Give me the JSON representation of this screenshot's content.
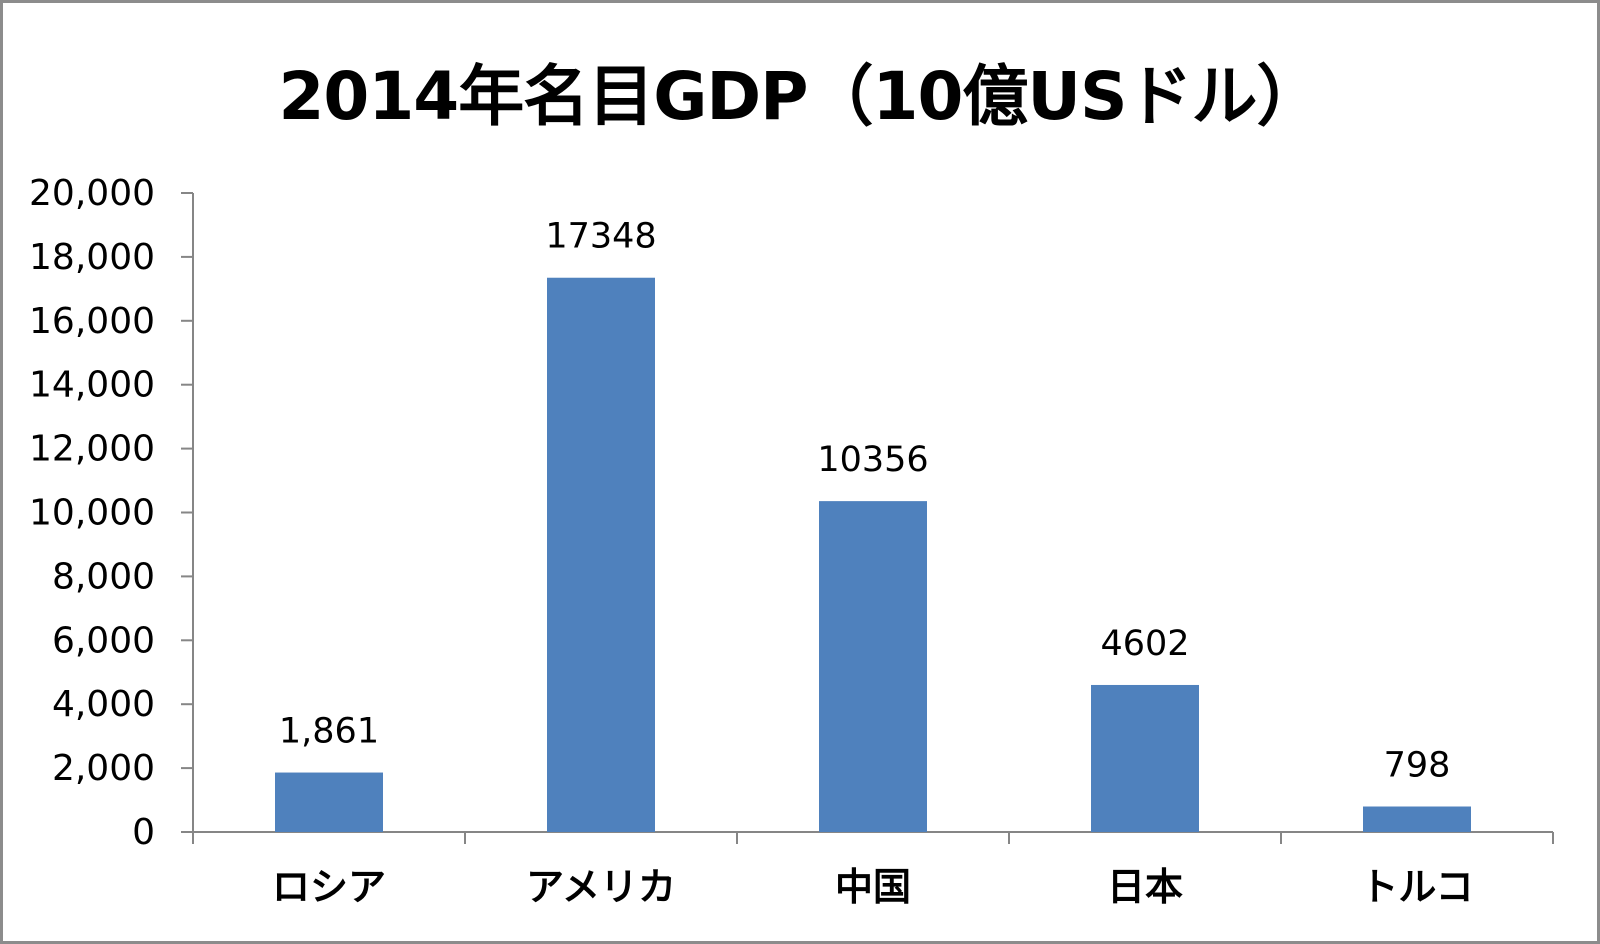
{
  "chart_data": {
    "type": "bar",
    "title": "2014年名目GDP（10億USドル）",
    "categories": [
      "ロシア",
      "アメリカ",
      "中国",
      "日本",
      "トルコ"
    ],
    "values": [
      1861,
      17348,
      10356,
      4602,
      798
    ],
    "data_labels": [
      "1,861",
      "17348",
      "10356",
      "4602",
      "798"
    ],
    "ylim": [
      0,
      20000
    ],
    "yticks": [
      0,
      2000,
      4000,
      6000,
      8000,
      10000,
      12000,
      14000,
      16000,
      18000,
      20000
    ],
    "ytick_labels": [
      "0",
      "2,000",
      "4,000",
      "6,000",
      "8,000",
      "10,000",
      "12,000",
      "14,000",
      "16,000",
      "18,000",
      "20,000"
    ],
    "grid": false,
    "legend": "none",
    "bar_color": "#4f81bd",
    "axis_color": "#868686"
  }
}
